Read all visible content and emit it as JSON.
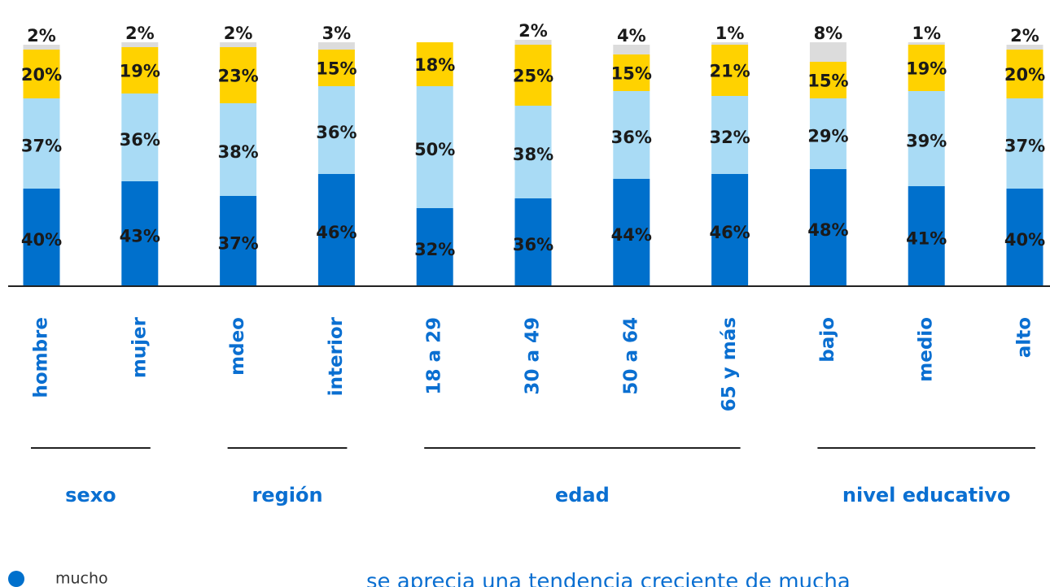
{
  "chart_data": {
    "type": "bar",
    "stacked": true,
    "categories": [
      "hombre",
      "mujer",
      "mdeo",
      "interior",
      "18 a 29",
      "30 a 49",
      "50 a 64",
      "65 y más",
      "bajo",
      "medio",
      "alto"
    ],
    "series": [
      {
        "name": "mucho",
        "color": "#0070cc",
        "values": [
          40,
          43,
          37,
          46,
          32,
          36,
          44,
          46,
          48,
          41,
          40
        ]
      },
      {
        "color": "#a9dbf5",
        "values": [
          37,
          36,
          38,
          36,
          50,
          38,
          36,
          32,
          29,
          39,
          37
        ]
      },
      {
        "color": "#ffd200",
        "values": [
          20,
          19,
          23,
          15,
          18,
          25,
          15,
          21,
          15,
          19,
          20
        ]
      },
      {
        "color": "#dcdcdc",
        "values": [
          2,
          2,
          2,
          3,
          null,
          2,
          4,
          1,
          8,
          1,
          2
        ]
      }
    ],
    "value_labels": [
      [
        "40%",
        "43%",
        "37%",
        "46%",
        "32%",
        "36%",
        "44%",
        "46%",
        "48%",
        "41%",
        "40%"
      ],
      [
        "37%",
        "36%",
        "38%",
        "36%",
        "50%",
        "38%",
        "36%",
        "32%",
        "29%",
        "39%",
        "37%"
      ],
      [
        "20%",
        "19%",
        "23%",
        "15%",
        "18%",
        "25%",
        "15%",
        "21%",
        "15%",
        "19%",
        "20%"
      ],
      [
        "2%",
        "2%",
        "2%",
        "3%",
        null,
        "2%",
        "4%",
        "1%",
        "8%",
        "1%",
        "2%"
      ]
    ],
    "groups": [
      "sexo",
      "región",
      "edad",
      "nivel educativo"
    ],
    "annotation": "se aprecia una tendencia creciente de mucha"
  }
}
